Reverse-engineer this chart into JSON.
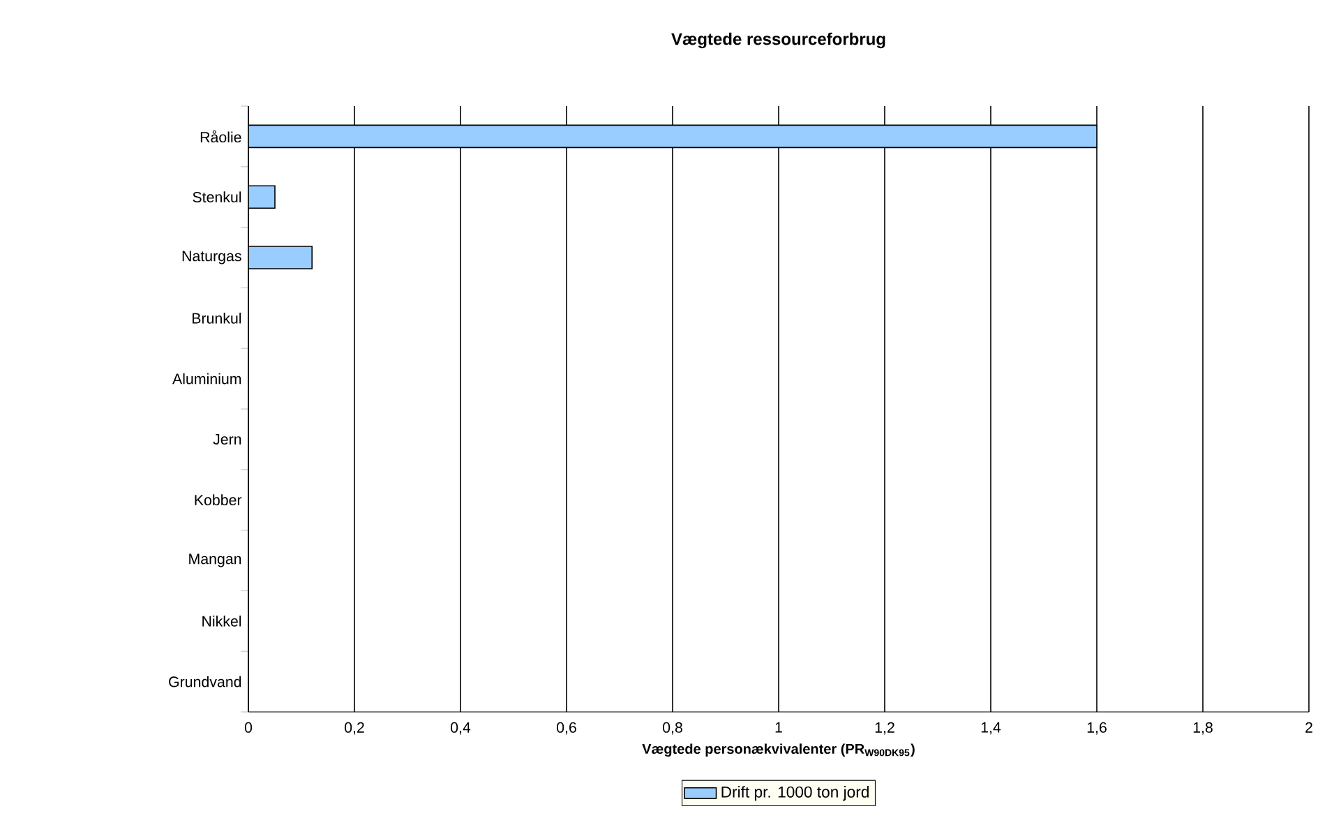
{
  "chart_data": {
    "type": "bar",
    "orientation": "horizontal",
    "title": "Vægtede ressourceforbrug",
    "xlabel": "Vægtede personækvivalenter (PR$_{W90DK95}$)",
    "categories": [
      "Råolie",
      "Stenkul",
      "Naturgas",
      "Brunkul",
      "Aluminium",
      "Jern",
      "Kobber",
      "Mangan",
      "Nikkel",
      "Grundvand"
    ],
    "series": [
      {
        "name": "Drift pr. 1000 ton jord",
        "color": "#99ccff",
        "values": [
          1.6,
          0.05,
          0.12,
          0,
          0,
          0,
          0,
          0,
          0,
          0
        ]
      }
    ],
    "xlim": [
      0,
      2
    ],
    "xticks": [
      0,
      {
        "value": 0.2,
        "label": "0,2"
      },
      {
        "value": 0.4,
        "label": "0,4"
      },
      {
        "value": 0.6,
        "label": "0,6"
      },
      {
        "value": 0.8,
        "label": "0,8"
      },
      1,
      {
        "value": 1.2,
        "label": "1,2"
      },
      {
        "value": 1.4,
        "label": "1,4"
      },
      {
        "value": 1.6,
        "label": "1,6"
      },
      {
        "value": 1.8,
        "label": "1,8"
      },
      2
    ],
    "grid": "x",
    "legend": "bottom"
  }
}
